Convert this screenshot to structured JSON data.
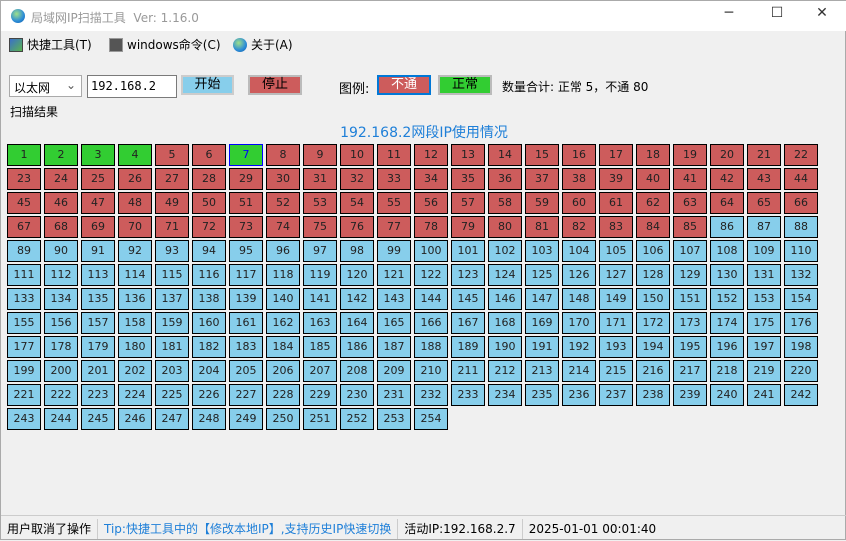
{
  "window": {
    "title": "局域网IP扫描工具",
    "version": "Ver: 1.16.0",
    "minimize": "─",
    "maximize": "☐",
    "close": "✕"
  },
  "menu": [
    {
      "label": "快捷工具(T)",
      "icon": "tools-icon"
    },
    {
      "label": "windows命令(C)",
      "icon": "cmd-icon"
    },
    {
      "label": "关于(A)",
      "icon": "globe-icon"
    }
  ],
  "toolbar": {
    "adapter": "以太网",
    "ip_prefix": "192.168.2",
    "start": "开始",
    "stop": "停止",
    "legend_label": "图例:",
    "legend_fail": "不通",
    "legend_ok": "正常",
    "count_text": "数量合计: 正常 5，不通 80"
  },
  "section_label": "扫描结果",
  "grid_title": "192.168.2网段IP使用情况",
  "colors": {
    "ok": "#32cd32",
    "fail": "#cd5c5c",
    "unscanned": "#87ceeb",
    "selected_border": "#0000ff"
  },
  "ip_status": {
    "ok": [
      1,
      2,
      3,
      4,
      7
    ],
    "fail_range": [
      5,
      85
    ],
    "unscanned_range": [
      86,
      254
    ],
    "selected": 7
  },
  "statusbar": {
    "message": "用户取消了操作",
    "tip": "Tip:快捷工具中的【修改本地IP】,支持历史IP快速切换",
    "active_ip": "活动IP:192.168.2.7",
    "datetime": "2025-01-01 00:01:40"
  }
}
